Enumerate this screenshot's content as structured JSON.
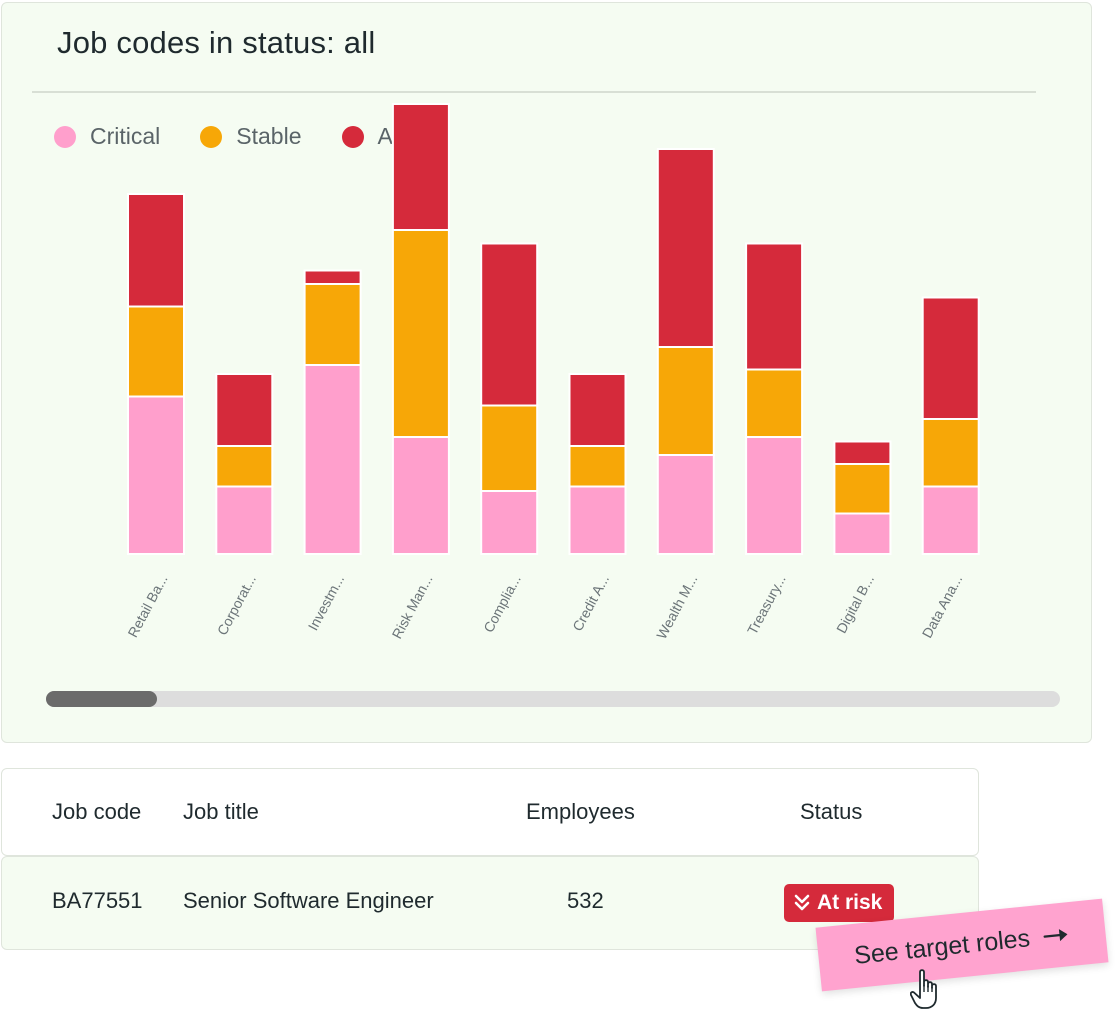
{
  "card": {
    "title": "Job codes in status: all"
  },
  "legend": [
    {
      "label": "Critical",
      "color": "#ff9fcc"
    },
    {
      "label": "Stable",
      "color": "#f7a707"
    },
    {
      "label": "At risk",
      "color": "#d52a3b"
    }
  ],
  "chart_data": {
    "type": "bar",
    "stacked": true,
    "categories": [
      "Retail Ba...",
      "Corporat...",
      "Investm...",
      "Risk Man...",
      "Complia...",
      "Credit A...",
      "Wealth M...",
      "Treasury...",
      "Digital B...",
      "Data Ana..."
    ],
    "series": [
      {
        "name": "Critical",
        "color": "#ff9fcc",
        "values": [
          35,
          15,
          42,
          26,
          14,
          15,
          22,
          26,
          9,
          15
        ]
      },
      {
        "name": "Stable",
        "color": "#f7a707",
        "values": [
          20,
          9,
          18,
          46,
          19,
          9,
          24,
          15,
          11,
          15
        ]
      },
      {
        "name": "At risk",
        "color": "#d52a3b",
        "values": [
          25,
          16,
          3,
          28,
          36,
          16,
          44,
          28,
          5,
          27
        ]
      }
    ],
    "ylim": [
      0,
      100
    ],
    "grid": false,
    "legend_position": "top-left"
  },
  "scrollbar": {
    "position": 0.0
  },
  "table": {
    "headers": [
      "Job code",
      "Job title",
      "Employees",
      "Status"
    ],
    "rows": [
      {
        "code": "BA77551",
        "title": "Senior Software Engineer",
        "employees": "532",
        "status": "At risk"
      }
    ]
  },
  "cta": {
    "label": "See target roles"
  },
  "icons": {
    "badge": "double-chevron-down-icon",
    "cta_arrow": "arrow-right-icon",
    "cursor": "hand-pointer-icon"
  }
}
